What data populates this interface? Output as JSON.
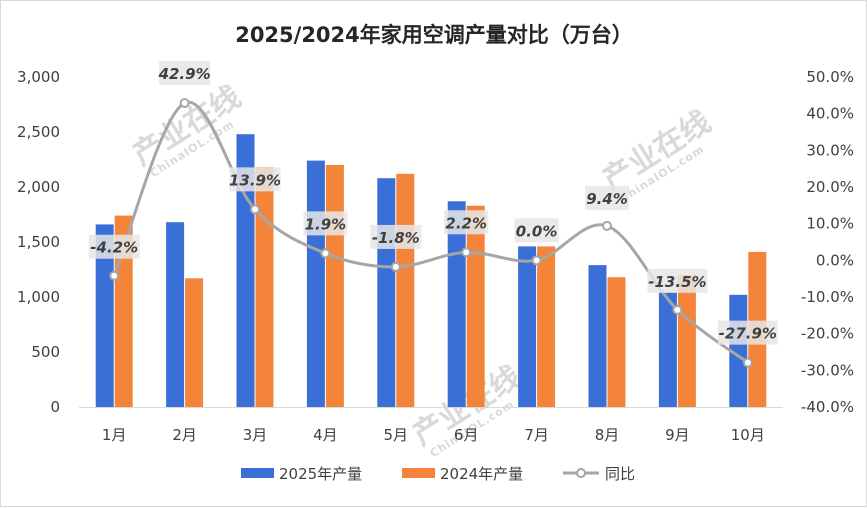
{
  "chart_data": {
    "type": "bar",
    "title": "2025/2024年家用空调产量对比（万台）",
    "categories": [
      "1月",
      "2月",
      "3月",
      "4月",
      "5月",
      "6月",
      "7月",
      "8月",
      "9月",
      "10月"
    ],
    "series": [
      {
        "name": "2025年产量",
        "type": "bar",
        "axis": "left",
        "color": "#3a6fd8",
        "values": [
          1660,
          1680,
          2480,
          2240,
          2080,
          1870,
          1460,
          1290,
          1040,
          1020
        ]
      },
      {
        "name": "2024年产量",
        "type": "bar",
        "axis": "left",
        "color": "#f5843b",
        "values": [
          1740,
          1170,
          2180,
          2200,
          2120,
          1830,
          1460,
          1180,
          1200,
          1410
        ]
      },
      {
        "name": "同比",
        "type": "line",
        "axis": "right",
        "color": "#a6a6a6",
        "values": [
          -4.2,
          42.9,
          13.9,
          1.9,
          -1.8,
          2.2,
          0.0,
          9.4,
          -13.5,
          -27.9
        ]
      }
    ],
    "data_labels": [
      "-4.2%",
      "42.9%",
      "13.9%",
      "1.9%",
      "-1.8%",
      "2.2%",
      "0.0%",
      "9.4%",
      "-13.5%",
      "-27.9%"
    ],
    "y_left": {
      "min": 0,
      "max": 3000,
      "step": 500,
      "ticks": [
        "0",
        "500",
        "1,000",
        "1,500",
        "2,000",
        "2,500",
        "3,000"
      ]
    },
    "y_right": {
      "min": -40,
      "max": 50,
      "step": 10,
      "ticks": [
        "-40.0%",
        "-30.0%",
        "-20.0%",
        "-10.0%",
        "0.0%",
        "10.0%",
        "20.0%",
        "30.0%",
        "40.0%",
        "50.0%"
      ]
    },
    "grid": false,
    "legend_position": "bottom"
  },
  "watermark": {
    "text": "产业在线",
    "sub": "ChinaIOL.com"
  }
}
